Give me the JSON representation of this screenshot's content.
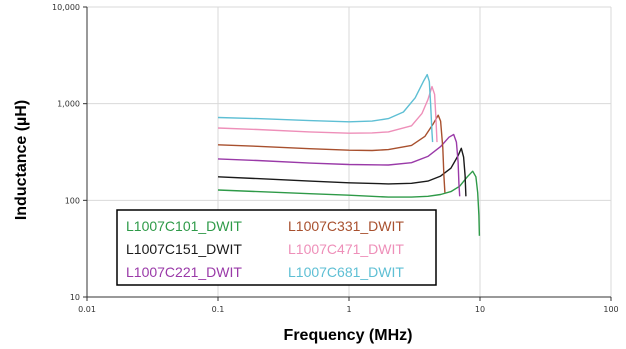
{
  "chart_data": {
    "type": "line",
    "xlabel": "Frequency (MHz)",
    "ylabel": "Inductance (µH)",
    "x_scale": "log",
    "y_scale": "log",
    "xlim": [
      0.01,
      100
    ],
    "ylim": [
      10,
      10000
    ],
    "x_ticks": [
      "0.01",
      "0.1",
      "1",
      "10",
      "100"
    ],
    "y_ticks": [
      "10",
      "100",
      "1,000",
      "10,000"
    ],
    "grid": true,
    "legend_position": "bottom-left",
    "series": [
      {
        "name": "L1007C101_DWIT",
        "color": "#2e9a48",
        "points": [
          [
            0.1,
            128
          ],
          [
            0.2,
            123
          ],
          [
            0.5,
            117
          ],
          [
            1,
            113
          ],
          [
            2,
            108
          ],
          [
            3,
            108
          ],
          [
            4,
            110
          ],
          [
            5,
            115
          ],
          [
            6,
            123
          ],
          [
            7,
            140
          ],
          [
            8,
            175
          ],
          [
            8.8,
            200
          ],
          [
            9.3,
            175
          ],
          [
            9.6,
            120
          ],
          [
            9.8,
            70
          ],
          [
            9.9,
            43
          ]
        ]
      },
      {
        "name": "L1007C151_DWIT",
        "color": "#1a1a1a",
        "points": [
          [
            0.1,
            175
          ],
          [
            0.2,
            168
          ],
          [
            0.5,
            158
          ],
          [
            1,
            152
          ],
          [
            2,
            148
          ],
          [
            3,
            150
          ],
          [
            4,
            158
          ],
          [
            5,
            178
          ],
          [
            6,
            215
          ],
          [
            6.8,
            290
          ],
          [
            7.2,
            345
          ],
          [
            7.5,
            280
          ],
          [
            7.7,
            180
          ],
          [
            7.8,
            110
          ]
        ]
      },
      {
        "name": "L1007C221_DWIT",
        "color": "#9a3aa8",
        "points": [
          [
            0.1,
            268
          ],
          [
            0.2,
            258
          ],
          [
            0.5,
            243
          ],
          [
            1,
            235
          ],
          [
            2,
            232
          ],
          [
            3,
            245
          ],
          [
            4,
            285
          ],
          [
            5,
            360
          ],
          [
            5.8,
            450
          ],
          [
            6.3,
            480
          ],
          [
            6.6,
            400
          ],
          [
            6.8,
            250
          ],
          [
            6.9,
            150
          ],
          [
            7.0,
            110
          ]
        ]
      },
      {
        "name": "L1007C331_DWIT",
        "color": "#a8502e",
        "points": [
          [
            0.1,
            375
          ],
          [
            0.2,
            362
          ],
          [
            0.5,
            342
          ],
          [
            1,
            330
          ],
          [
            1.5,
            328
          ],
          [
            2,
            335
          ],
          [
            3,
            370
          ],
          [
            3.8,
            460
          ],
          [
            4.4,
            620
          ],
          [
            4.8,
            760
          ],
          [
            5.0,
            660
          ],
          [
            5.2,
            350
          ],
          [
            5.3,
            180
          ],
          [
            5.4,
            120
          ]
        ]
      },
      {
        "name": "L1007C471_DWIT",
        "color": "#ee8fb9",
        "points": [
          [
            0.1,
            560
          ],
          [
            0.2,
            540
          ],
          [
            0.5,
            510
          ],
          [
            1,
            495
          ],
          [
            1.5,
            498
          ],
          [
            2,
            510
          ],
          [
            3,
            590
          ],
          [
            3.6,
            790
          ],
          [
            4.0,
            1100
          ],
          [
            4.3,
            1500
          ],
          [
            4.5,
            1250
          ],
          [
            4.6,
            750
          ],
          [
            4.7,
            400
          ]
        ]
      },
      {
        "name": "L1007C681_DWIT",
        "color": "#5ebfd4",
        "points": [
          [
            0.1,
            720
          ],
          [
            0.2,
            700
          ],
          [
            0.5,
            668
          ],
          [
            1,
            650
          ],
          [
            1.5,
            660
          ],
          [
            2,
            700
          ],
          [
            2.6,
            820
          ],
          [
            3.2,
            1150
          ],
          [
            3.7,
            1700
          ],
          [
            3.95,
            2000
          ],
          [
            4.1,
            1700
          ],
          [
            4.2,
            1000
          ],
          [
            4.3,
            500
          ],
          [
            4.35,
            400
          ]
        ]
      }
    ]
  }
}
